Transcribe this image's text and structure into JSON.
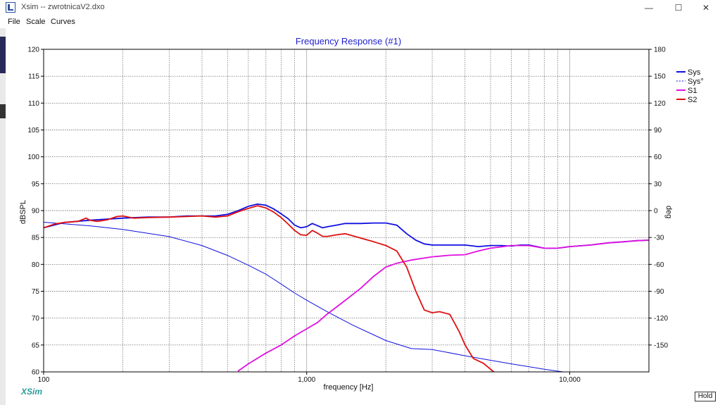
{
  "window": {
    "title": "Xsim -- zwrotnicaV2.dxo",
    "icon": "xsim-app-icon",
    "controls": {
      "minimize": "—",
      "maximize": "☐",
      "close": "✕"
    }
  },
  "menu": [
    "File",
    "Scale",
    "Curves"
  ],
  "chart_data": {
    "type": "line",
    "title": "Frequency Response (#1)",
    "xlabel": "frequency [Hz]",
    "ylabel": "dBSPL",
    "y2label": "deg",
    "xscale": "log",
    "xlim": [
      100,
      20000
    ],
    "ylim": [
      60,
      120
    ],
    "y2lim": [
      -180,
      180
    ],
    "grid": true,
    "x_tick_labels": [
      "100",
      "1,000",
      "10,000"
    ],
    "y_ticks": [
      60,
      65,
      70,
      75,
      80,
      85,
      90,
      95,
      100,
      105,
      110,
      115,
      120
    ],
    "y2_ticks": [
      -150,
      -120,
      -90,
      -60,
      -30,
      0,
      30,
      60,
      90,
      120,
      150,
      180
    ],
    "legend_position": "top-right outside",
    "watermark": "XSim",
    "series": [
      {
        "name": "Sys",
        "color": "#1010e0",
        "axis": "left",
        "style": "solid-thick",
        "x": [
          100,
          120,
          150,
          200,
          250,
          300,
          350,
          400,
          450,
          500,
          550,
          600,
          650,
          700,
          750,
          800,
          850,
          900,
          950,
          1000,
          1050,
          1100,
          1150,
          1200,
          1300,
          1400,
          1500,
          1600,
          1800,
          2000,
          2200,
          2400,
          2600,
          2800,
          3000,
          3500,
          4000,
          4500,
          5000,
          5500,
          6000,
          6500,
          7000,
          7500,
          8000,
          9000,
          10000,
          12000,
          14000,
          16000,
          18000,
          20000
        ],
        "y": [
          86.8,
          87.8,
          88.2,
          88.6,
          88.8,
          88.8,
          89.0,
          89.0,
          89.0,
          89.3,
          90.0,
          90.8,
          91.2,
          91.0,
          90.3,
          89.4,
          88.5,
          87.3,
          86.8,
          87.0,
          87.6,
          87.2,
          86.8,
          87.0,
          87.3,
          87.6,
          87.6,
          87.6,
          87.7,
          87.7,
          87.3,
          85.7,
          84.5,
          83.8,
          83.6,
          83.6,
          83.6,
          83.3,
          83.5,
          83.5,
          83.4,
          83.6,
          83.6,
          83.3,
          83.0,
          83.0,
          83.3,
          83.6,
          84.0,
          84.2,
          84.4,
          84.5
        ]
      },
      {
        "name": "Sys°",
        "color": "#1010e0",
        "axis": "right",
        "style": "solid-thin",
        "x": [
          100,
          150,
          200,
          300,
          400,
          500,
          600,
          700,
          800,
          900,
          1000,
          1200,
          1500,
          2000,
          2500,
          3000,
          4000,
          5000,
          6000,
          8000,
          10000,
          14000,
          20000
        ],
        "y": [
          -13,
          -17,
          -21,
          -29,
          -39,
          -50,
          -61,
          -71,
          -82,
          -92,
          -100,
          -113,
          -128,
          -145,
          -154,
          -155,
          -162,
          -167,
          -171,
          -177,
          -181,
          -186,
          -190
        ]
      },
      {
        "name": "S1",
        "color": "#e010e0",
        "axis": "left",
        "style": "solid-thick",
        "x": [
          550,
          600,
          700,
          800,
          900,
          1000,
          1100,
          1200,
          1400,
          1600,
          1800,
          2000,
          2200,
          2500,
          3000,
          3500,
          4000,
          4500,
          5000,
          6000,
          7000,
          8000,
          9000,
          10000,
          12000,
          14000,
          16000,
          18000,
          20000
        ],
        "y": [
          60.2,
          61.5,
          63.5,
          65.0,
          66.7,
          68.0,
          69.2,
          70.8,
          73.3,
          75.5,
          77.8,
          79.5,
          80.2,
          80.8,
          81.4,
          81.7,
          81.8,
          82.5,
          83.0,
          83.5,
          83.5,
          83.0,
          83.0,
          83.3,
          83.6,
          84.0,
          84.2,
          84.4,
          84.5
        ]
      },
      {
        "name": "S2",
        "color": "#e01010",
        "axis": "left",
        "style": "solid-thick",
        "x": [
          100,
          110,
          120,
          135,
          145,
          150,
          160,
          175,
          190,
          200,
          220,
          250,
          300,
          350,
          400,
          450,
          500,
          550,
          600,
          650,
          700,
          750,
          800,
          850,
          900,
          950,
          1000,
          1050,
          1100,
          1150,
          1200,
          1300,
          1400,
          1500,
          1600,
          1800,
          2000,
          2200,
          2400,
          2600,
          2800,
          3000,
          3200,
          3500,
          3800,
          4000,
          4300,
          4700,
          5000,
          5300
        ],
        "y": [
          86.8,
          87.5,
          87.8,
          88.0,
          88.6,
          88.2,
          88.0,
          88.3,
          88.9,
          89.0,
          88.6,
          88.7,
          88.8,
          88.9,
          89.0,
          88.8,
          89.0,
          89.8,
          90.4,
          90.9,
          90.5,
          89.7,
          88.7,
          87.5,
          86.3,
          85.5,
          85.4,
          86.3,
          85.8,
          85.2,
          85.2,
          85.5,
          85.7,
          85.3,
          84.9,
          84.2,
          83.5,
          82.5,
          79.5,
          75.0,
          71.5,
          71.0,
          71.2,
          70.7,
          67.5,
          65.0,
          62.5,
          61.6,
          60.5,
          59.5
        ]
      }
    ]
  },
  "hold_button": "Hold"
}
